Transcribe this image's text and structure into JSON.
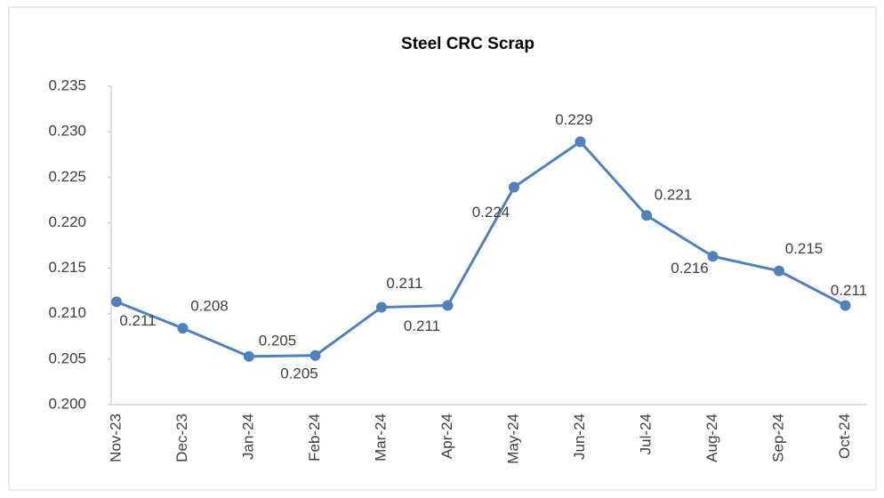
{
  "chart_data": {
    "type": "line",
    "title": "Steel CRC Scrap",
    "categories": [
      "Nov-23",
      "Dec-23",
      "Jan-24",
      "Feb-24",
      "Mar-24",
      "Apr-24",
      "May-24",
      "Jun-24",
      "Jul-24",
      "Aug-24",
      "Sep-24",
      "Oct-24"
    ],
    "series": [
      {
        "name": "Steel CRC Scrap",
        "color": "#4f81bd",
        "values": [
          0.2113,
          0.2084,
          0.2053,
          0.2054,
          0.2107,
          0.2109,
          0.2239,
          0.2289,
          0.2208,
          0.2163,
          0.2147,
          0.2109
        ],
        "value_labels": [
          "0.211",
          "0.208",
          "0.205",
          "0.205",
          "0.211",
          "0.211",
          "0.224",
          "0.229",
          "0.221",
          "0.216",
          "0.215",
          "0.211"
        ]
      }
    ],
    "ylim": [
      0.2,
      0.235
    ],
    "yticks": [
      {
        "value": 0.2,
        "label": "0.200"
      },
      0.205,
      {
        "value": 0.21,
        "label": "0.210"
      },
      0.215,
      {
        "value": 0.22,
        "label": "0.220"
      },
      0.225,
      {
        "value": 0.23,
        "label": "0.230"
      },
      0.235
    ],
    "grid": false
  }
}
